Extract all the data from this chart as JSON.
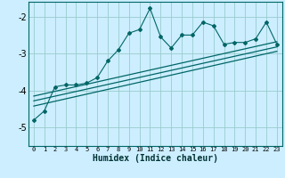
{
  "xlabel": "Humidex (Indice chaleur)",
  "bg_color": "#cceeff",
  "grid_color": "#99cccc",
  "line_color": "#006666",
  "xlim": [
    -0.5,
    23.5
  ],
  "ylim": [
    -5.5,
    -1.6
  ],
  "yticks": [
    -5,
    -4,
    -3,
    -2
  ],
  "xticks": [
    0,
    1,
    2,
    3,
    4,
    5,
    6,
    7,
    8,
    9,
    10,
    11,
    12,
    13,
    14,
    15,
    16,
    17,
    18,
    19,
    20,
    21,
    22,
    23
  ],
  "scatter_x": [
    0,
    1,
    2,
    3,
    4,
    5,
    6,
    7,
    8,
    9,
    10,
    11,
    12,
    13,
    14,
    15,
    16,
    17,
    18,
    19,
    20,
    21,
    22,
    23
  ],
  "scatter_y": [
    -4.8,
    -4.55,
    -3.9,
    -3.85,
    -3.85,
    -3.8,
    -3.65,
    -3.2,
    -2.9,
    -2.45,
    -2.35,
    -1.78,
    -2.55,
    -2.85,
    -2.5,
    -2.5,
    -2.15,
    -2.25,
    -2.75,
    -2.7,
    -2.7,
    -2.6,
    -2.15,
    -2.75
  ],
  "reg_lines": [
    {
      "x": [
        0,
        23
      ],
      "y": [
        -4.15,
        -2.68
      ]
    },
    {
      "x": [
        0,
        23
      ],
      "y": [
        -4.28,
        -2.82
      ]
    },
    {
      "x": [
        0,
        23
      ],
      "y": [
        -4.42,
        -2.94
      ]
    }
  ]
}
